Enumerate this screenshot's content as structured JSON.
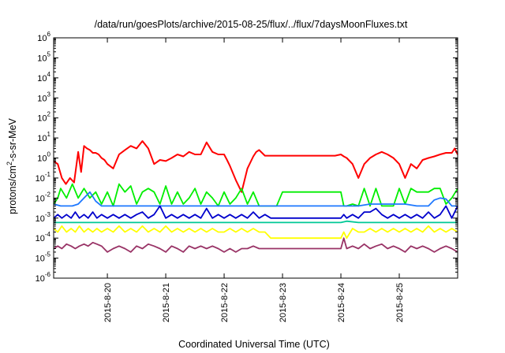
{
  "chart_data": {
    "type": "line",
    "title": "/data/run/goesPlots/archive/2015-08-25/flux/../flux/7daysMoonFluxes.txt",
    "xlabel": "Coordinated Universal Time (UTC)",
    "ylabel": {
      "pre": "protons/cm",
      "sup": "2",
      "post": "-s-sr-MeV"
    },
    "yscale": "log",
    "ylim_exp": [
      -6,
      6
    ],
    "y_tick_exponents": [
      -6,
      -5,
      -4,
      -3,
      -2,
      -1,
      0,
      1,
      2,
      3,
      4,
      5,
      6
    ],
    "y_tick_base": "10",
    "xlim_days": [
      -0.92,
      6.0
    ],
    "x_tick_labels": [
      "2015-8-20",
      "2015-8-21",
      "2015-8-22",
      "2015-8-23",
      "2015-8-24",
      "2015-8-25"
    ],
    "x_tick_days": [
      0,
      1,
      2,
      3,
      4,
      5
    ],
    "grid": false,
    "legend": "none",
    "series": [
      {
        "color": "#ff0000",
        "x": [
          -0.92,
          -0.85,
          -0.78,
          -0.71,
          -0.64,
          -0.57,
          -0.5,
          -0.45,
          -0.4,
          -0.35,
          -0.3,
          -0.25,
          -0.2,
          -0.15,
          -0.1,
          -0.05,
          0.0,
          0.1,
          0.2,
          0.3,
          0.4,
          0.5,
          0.6,
          0.7,
          0.8,
          0.9,
          1.0,
          1.1,
          1.2,
          1.3,
          1.4,
          1.5,
          1.6,
          1.7,
          1.8,
          1.9,
          2.0,
          2.05,
          2.1,
          2.2,
          2.3,
          2.4,
          2.5,
          2.55,
          2.6,
          2.7,
          2.8,
          2.9,
          3.0,
          3.1,
          3.2,
          3.3,
          3.4,
          3.5,
          3.6,
          3.7,
          3.8,
          3.9,
          4.0,
          4.05,
          4.1,
          4.2,
          4.3,
          4.4,
          4.5,
          4.6,
          4.7,
          4.8,
          4.9,
          5.0,
          5.1,
          5.2,
          5.3,
          5.4,
          5.5,
          5.6,
          5.7,
          5.8,
          5.9,
          5.95,
          6.0
        ],
        "y": [
          0.7,
          0.5,
          0.1,
          0.05,
          0.1,
          0.06,
          2.0,
          0.2,
          4.0,
          3.0,
          2.5,
          1.8,
          1.8,
          1.5,
          1.0,
          0.8,
          0.5,
          0.3,
          1.5,
          2.5,
          4.0,
          3.0,
          7.0,
          3.0,
          0.5,
          0.8,
          0.7,
          1.0,
          1.5,
          1.2,
          2.0,
          1.5,
          1.5,
          6.0,
          2.0,
          1.5,
          1.5,
          0.8,
          0.4,
          0.08,
          0.02,
          0.3,
          1.2,
          2.0,
          2.5,
          1.3,
          1.3,
          1.3,
          1.3,
          1.3,
          1.3,
          1.3,
          1.3,
          1.3,
          1.3,
          1.3,
          1.3,
          1.3,
          1.5,
          1.2,
          1.0,
          0.5,
          0.1,
          0.5,
          1.0,
          1.5,
          2.0,
          1.5,
          1.0,
          0.5,
          0.1,
          0.5,
          0.3,
          0.8,
          1.0,
          1.2,
          1.5,
          1.8,
          1.8,
          3.0,
          1.5
        ]
      },
      {
        "color": "#00ee00",
        "x": [
          -0.92,
          -0.85,
          -0.8,
          -0.7,
          -0.6,
          -0.5,
          -0.4,
          -0.3,
          -0.2,
          -0.1,
          0.0,
          0.1,
          0.2,
          0.3,
          0.4,
          0.5,
          0.6,
          0.7,
          0.8,
          0.9,
          1.0,
          1.1,
          1.2,
          1.3,
          1.4,
          1.5,
          1.6,
          1.7,
          1.8,
          1.9,
          2.0,
          2.1,
          2.2,
          2.3,
          2.4,
          2.5,
          2.6,
          2.7,
          2.8,
          2.9,
          3.0,
          3.1,
          3.2,
          3.3,
          3.4,
          3.5,
          3.6,
          3.7,
          3.8,
          3.9,
          4.0,
          4.05,
          4.1,
          4.2,
          4.3,
          4.4,
          4.5,
          4.6,
          4.7,
          4.8,
          4.9,
          5.0,
          5.1,
          5.2,
          5.3,
          5.4,
          5.5,
          5.6,
          5.7,
          5.8,
          5.9,
          6.0
        ],
        "y": [
          0.005,
          0.01,
          0.03,
          0.01,
          0.05,
          0.01,
          0.03,
          0.01,
          0.02,
          0.005,
          0.02,
          0.004,
          0.05,
          0.02,
          0.04,
          0.005,
          0.02,
          0.03,
          0.02,
          0.005,
          0.04,
          0.005,
          0.02,
          0.005,
          0.01,
          0.03,
          0.005,
          0.02,
          0.01,
          0.004,
          0.02,
          0.005,
          0.01,
          0.03,
          0.005,
          0.02,
          0.004,
          0.004,
          0.004,
          0.004,
          0.02,
          0.02,
          0.02,
          0.02,
          0.02,
          0.02,
          0.02,
          0.02,
          0.02,
          0.02,
          0.02,
          0.004,
          0.004,
          0.005,
          0.004,
          0.03,
          0.004,
          0.03,
          0.004,
          0.004,
          0.004,
          0.03,
          0.005,
          0.03,
          0.02,
          0.02,
          0.02,
          0.03,
          0.03,
          0.005,
          0.01,
          0.03
        ]
      },
      {
        "color": "#1e78ff",
        "x": [
          -0.92,
          -0.8,
          -0.7,
          -0.6,
          -0.5,
          -0.4,
          -0.3,
          -0.2,
          -0.1,
          0.0,
          0.5,
          1.0,
          1.5,
          2.0,
          2.5,
          3.0,
          3.5,
          4.0,
          4.3,
          4.5,
          4.7,
          4.9,
          5.1,
          5.3,
          5.5,
          5.6,
          5.7,
          5.8,
          5.9,
          6.0
        ],
        "y": [
          0.005,
          0.004,
          0.004,
          0.004,
          0.005,
          0.01,
          0.02,
          0.007,
          0.004,
          0.004,
          0.004,
          0.004,
          0.004,
          0.004,
          0.004,
          0.004,
          0.004,
          0.004,
          0.004,
          0.005,
          0.005,
          0.005,
          0.005,
          0.004,
          0.004,
          0.008,
          0.01,
          0.009,
          0.004,
          0.004
        ]
      },
      {
        "color": "#0000cc",
        "x": [
          -0.92,
          -0.85,
          -0.78,
          -0.7,
          -0.62,
          -0.55,
          -0.48,
          -0.4,
          -0.33,
          -0.25,
          -0.18,
          -0.1,
          0.0,
          0.1,
          0.2,
          0.3,
          0.4,
          0.5,
          0.6,
          0.7,
          0.8,
          0.9,
          1.0,
          1.1,
          1.2,
          1.3,
          1.4,
          1.5,
          1.6,
          1.7,
          1.8,
          1.9,
          2.0,
          2.1,
          2.2,
          2.3,
          2.4,
          2.5,
          2.6,
          2.7,
          2.8,
          2.9,
          3.0,
          3.5,
          4.0,
          4.05,
          4.1,
          4.2,
          4.3,
          4.4,
          4.5,
          4.6,
          4.7,
          4.8,
          4.9,
          5.0,
          5.1,
          5.2,
          5.3,
          5.4,
          5.5,
          5.6,
          5.7,
          5.8,
          5.9,
          6.0
        ],
        "y": [
          0.001,
          0.0015,
          0.001,
          0.0015,
          0.001,
          0.002,
          0.001,
          0.0015,
          0.001,
          0.002,
          0.001,
          0.0015,
          0.001,
          0.0015,
          0.001,
          0.0015,
          0.001,
          0.0015,
          0.002,
          0.001,
          0.0015,
          0.004,
          0.001,
          0.0015,
          0.001,
          0.0015,
          0.001,
          0.0015,
          0.001,
          0.003,
          0.001,
          0.0015,
          0.001,
          0.0015,
          0.001,
          0.0015,
          0.001,
          0.002,
          0.001,
          0.0015,
          0.001,
          0.001,
          0.001,
          0.001,
          0.001,
          0.0015,
          0.001,
          0.0015,
          0.001,
          0.002,
          0.002,
          0.003,
          0.0015,
          0.001,
          0.0015,
          0.001,
          0.0015,
          0.001,
          0.0015,
          0.001,
          0.002,
          0.001,
          0.0015,
          0.004,
          0.001,
          0.004
        ]
      },
      {
        "color": "#00c896",
        "x": [
          -0.92,
          0.0,
          1.0,
          2.0,
          3.0,
          4.0,
          4.1,
          4.3,
          4.5,
          5.0,
          5.5,
          6.0
        ],
        "y": [
          0.0006,
          0.0006,
          0.0006,
          0.0006,
          0.0006,
          0.0006,
          0.0007,
          0.0006,
          0.0006,
          0.0006,
          0.0006,
          0.0006
        ]
      },
      {
        "color": "#ffff00",
        "x": [
          -0.92,
          -0.85,
          -0.78,
          -0.7,
          -0.62,
          -0.55,
          -0.48,
          -0.4,
          -0.33,
          -0.25,
          -0.18,
          -0.1,
          0.0,
          0.1,
          0.2,
          0.3,
          0.4,
          0.5,
          0.6,
          0.7,
          0.8,
          0.9,
          1.0,
          1.1,
          1.2,
          1.3,
          1.4,
          1.5,
          1.6,
          1.7,
          1.8,
          1.9,
          2.0,
          2.1,
          2.2,
          2.3,
          2.4,
          2.5,
          2.6,
          2.7,
          2.8,
          2.9,
          3.0,
          3.5,
          4.0,
          4.05,
          4.1,
          4.2,
          4.3,
          4.4,
          4.5,
          4.6,
          4.7,
          4.8,
          4.9,
          5.0,
          5.1,
          5.2,
          5.3,
          5.4,
          5.5,
          5.6,
          5.7,
          5.8,
          5.9,
          6.0
        ],
        "y": [
          0.0003,
          0.0002,
          0.0004,
          0.0002,
          0.0003,
          0.0002,
          0.0004,
          0.0002,
          0.0003,
          0.0002,
          0.0003,
          0.0002,
          0.0003,
          0.0002,
          0.0004,
          0.0002,
          0.0003,
          0.0002,
          0.0004,
          0.0002,
          0.0003,
          0.0002,
          0.0004,
          0.0002,
          0.0003,
          0.0002,
          0.0003,
          0.0002,
          0.0003,
          0.0002,
          0.0003,
          0.0002,
          0.0002,
          0.0003,
          0.0002,
          0.0003,
          0.0002,
          0.0003,
          0.0002,
          0.0002,
          0.0001,
          0.0001,
          0.0001,
          0.0001,
          0.0001,
          0.0002,
          0.0001,
          0.0003,
          0.0002,
          0.0002,
          0.0003,
          0.0002,
          0.0003,
          0.0002,
          0.0003,
          0.0002,
          0.0003,
          0.0002,
          0.0003,
          0.0002,
          0.0004,
          0.0002,
          0.0003,
          0.0002,
          0.0003,
          0.0002
        ]
      },
      {
        "color": "#993366",
        "x": [
          -0.92,
          -0.85,
          -0.78,
          -0.7,
          -0.62,
          -0.55,
          -0.48,
          -0.4,
          -0.33,
          -0.25,
          -0.18,
          -0.1,
          0.0,
          0.1,
          0.2,
          0.3,
          0.4,
          0.5,
          0.6,
          0.7,
          0.8,
          0.9,
          1.0,
          1.1,
          1.2,
          1.3,
          1.4,
          1.5,
          1.6,
          1.7,
          1.8,
          1.9,
          2.0,
          2.1,
          2.2,
          2.3,
          2.4,
          2.5,
          2.6,
          2.7,
          2.8,
          2.9,
          3.0,
          3.5,
          4.0,
          4.05,
          4.1,
          4.2,
          4.3,
          4.4,
          4.5,
          4.6,
          4.7,
          4.8,
          4.9,
          5.0,
          5.1,
          5.2,
          5.3,
          5.4,
          5.5,
          5.6,
          5.7,
          5.8,
          5.9,
          6.0
        ],
        "y": [
          3e-05,
          4e-05,
          3e-05,
          5e-05,
          4e-05,
          3e-05,
          4e-05,
          5e-05,
          4e-05,
          6e-05,
          5e-05,
          4e-05,
          2e-05,
          3e-05,
          4e-05,
          3e-05,
          2e-05,
          4e-05,
          3e-05,
          5e-05,
          4e-05,
          3e-05,
          2e-05,
          4e-05,
          3e-05,
          2e-05,
          4e-05,
          3e-05,
          4e-05,
          3e-05,
          4e-05,
          3e-05,
          2e-05,
          3e-05,
          2e-05,
          3e-05,
          3e-05,
          4e-05,
          3e-05,
          3e-05,
          3e-05,
          3e-05,
          3e-05,
          3e-05,
          3e-05,
          0.0001,
          3e-05,
          4e-05,
          3e-05,
          5e-05,
          3e-05,
          4e-05,
          5e-05,
          3e-05,
          4e-05,
          3e-05,
          2e-05,
          4e-05,
          3e-05,
          4e-05,
          3e-05,
          2e-05,
          3e-05,
          4e-05,
          3e-05,
          2e-05
        ]
      }
    ]
  }
}
